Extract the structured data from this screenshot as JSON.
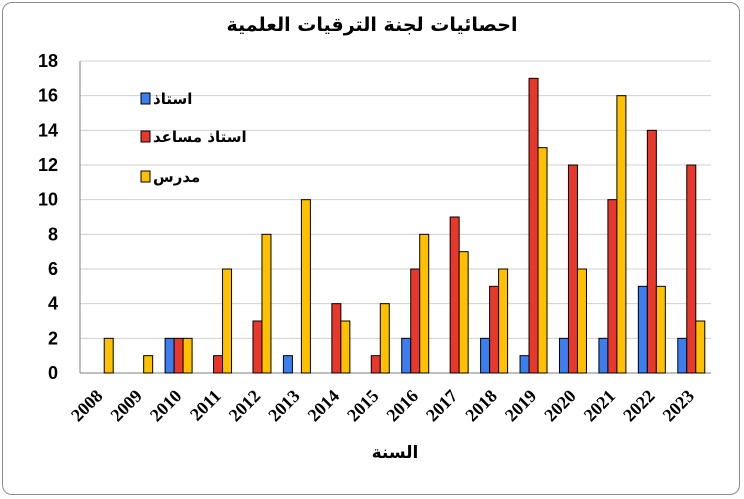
{
  "chart_data": {
    "type": "bar",
    "title": "احصائيات لجنة الترقيات العلمية",
    "xlabel": "السنة",
    "ylabel": "",
    "ylim": [
      0,
      18
    ],
    "yticks": [
      0,
      2,
      4,
      6,
      8,
      10,
      12,
      14,
      16,
      18
    ],
    "grid": true,
    "legend_position": "top-left",
    "categories": [
      "2008",
      "2009",
      "2010",
      "2011",
      "2012",
      "2013",
      "2014",
      "2015",
      "2016",
      "2017",
      "2018",
      "2019",
      "2020",
      "2021",
      "2022",
      "2023"
    ],
    "series": [
      {
        "name": "استاذ",
        "color": "#3a7ef0",
        "values": [
          0,
          0,
          2,
          0,
          0,
          1,
          0,
          0,
          2,
          0,
          2,
          1,
          2,
          2,
          5,
          2
        ]
      },
      {
        "name": "استاذ مساعد",
        "color": "#e8372b",
        "values": [
          0,
          0,
          2,
          1,
          3,
          0,
          4,
          1,
          6,
          9,
          5,
          17,
          12,
          10,
          14,
          12
        ]
      },
      {
        "name": "مدرس",
        "color": "#ffc000",
        "values": [
          2,
          1,
          2,
          6,
          8,
          10,
          3,
          4,
          8,
          7,
          6,
          13,
          6,
          16,
          5,
          3
        ]
      }
    ]
  }
}
